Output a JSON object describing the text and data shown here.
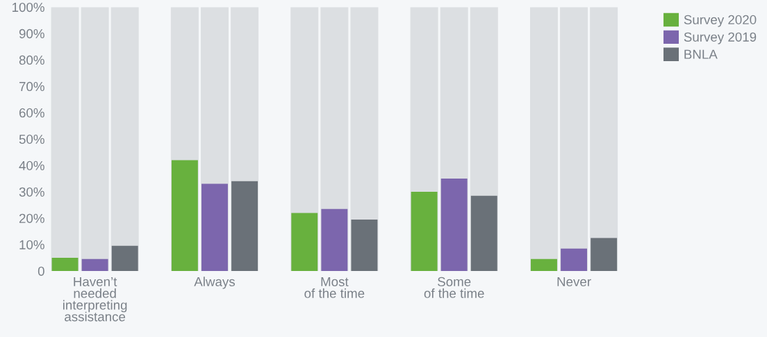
{
  "chart_data": {
    "type": "bar",
    "categories": [
      "Haven’t\nneeded\ninterpreting\nassistance",
      "Always",
      "Most\nof the time",
      "Some\nof the time",
      "Never"
    ],
    "series": [
      {
        "color": "#dcdfe2",
        "values": [
          100,
          100,
          100,
          100,
          100
        ]
      },
      {
        "color": "#dcdfe2",
        "values": [
          100,
          100,
          100,
          100,
          100
        ]
      },
      {
        "color": "#dcdfe2",
        "values": [
          100,
          100,
          100,
          100,
          100
        ]
      },
      {
        "name": "Survey 2020",
        "color": "#68b13e",
        "values": [
          5,
          42,
          22,
          30,
          4.5
        ]
      },
      {
        "name": "Survey 2019",
        "color": "#7c66ad",
        "values": [
          4.5,
          33,
          23.5,
          35,
          8.5
        ]
      },
      {
        "name": "BNLA",
        "color": "#6a7178",
        "values": [
          9.5,
          34,
          19.5,
          28.5,
          12.5
        ]
      }
    ],
    "ylim": [
      0,
      100
    ],
    "yticks": [
      {
        "value": 0,
        "label": "0"
      },
      {
        "value": 10,
        "label": "10%"
      },
      {
        "value": 20,
        "label": "20%"
      },
      {
        "value": 30,
        "label": "30%"
      },
      {
        "value": 40,
        "label": "40%"
      },
      {
        "value": 50,
        "label": "50%"
      },
      {
        "value": 60,
        "label": "60%"
      },
      {
        "value": 70,
        "label": "70%"
      },
      {
        "value": 80,
        "label": "80%"
      },
      {
        "value": 90,
        "label": "90%"
      },
      {
        "value": 100,
        "label": "100%"
      }
    ],
    "grid": false,
    "legend": "top right"
  }
}
